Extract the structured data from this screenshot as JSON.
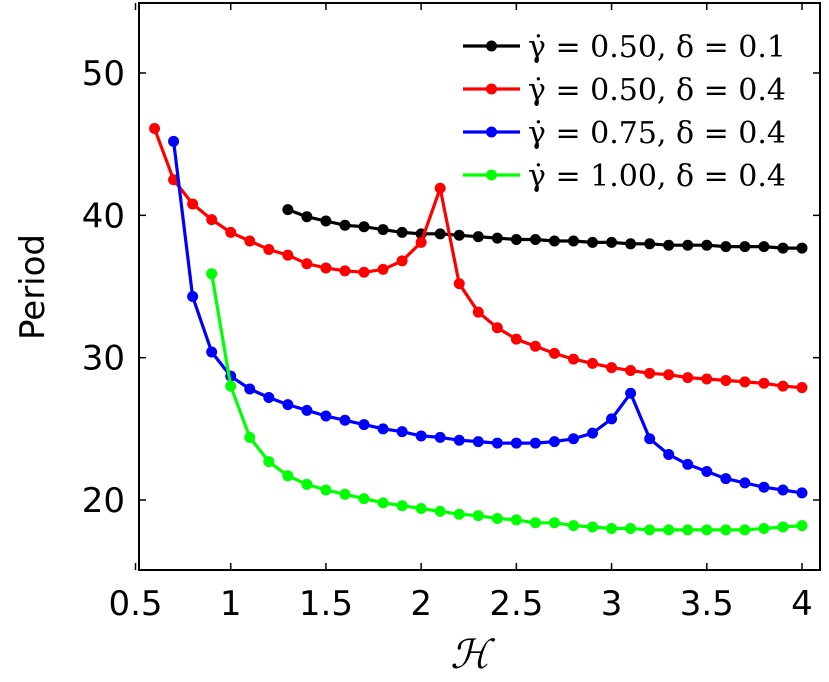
{
  "chart_data": {
    "type": "line",
    "title": "",
    "xlabel": "ℋ",
    "ylabel": "Period",
    "xlim": [
      0.5,
      4.05
    ],
    "ylim": [
      15,
      55
    ],
    "xticks": [
      0.5,
      1,
      1.5,
      2,
      2.5,
      3,
      3.5,
      4
    ],
    "xtick_labels": [
      "0.5",
      "1",
      "1.5",
      "2",
      "2.5",
      "3",
      "3.5",
      "4"
    ],
    "yticks": [
      20,
      30,
      40,
      50
    ],
    "ytick_labels": [
      "20",
      "30",
      "40",
      "50"
    ],
    "grid": false,
    "legend_position": "top-right",
    "series": [
      {
        "name": "γ̇ = 0.50,  δ = 0.1",
        "color": "#000000",
        "x": [
          1.3,
          1.4,
          1.5,
          1.6,
          1.7,
          1.8,
          1.9,
          2.0,
          2.1,
          2.2,
          2.3,
          2.4,
          2.5,
          2.6,
          2.7,
          2.8,
          2.9,
          3.0,
          3.1,
          3.2,
          3.3,
          3.4,
          3.5,
          3.6,
          3.7,
          3.8,
          3.9,
          4.0
        ],
        "y": [
          40.4,
          39.9,
          39.6,
          39.3,
          39.2,
          39.0,
          38.8,
          38.7,
          38.7,
          38.6,
          38.5,
          38.4,
          38.3,
          38.3,
          38.2,
          38.2,
          38.1,
          38.1,
          38.0,
          38.0,
          37.9,
          37.9,
          37.9,
          37.8,
          37.8,
          37.8,
          37.7,
          37.7
        ]
      },
      {
        "name": "γ̇ = 0.50,  δ = 0.4",
        "color": "#ff0000",
        "x": [
          0.6,
          0.7,
          0.8,
          0.9,
          1.0,
          1.1,
          1.2,
          1.3,
          1.4,
          1.5,
          1.6,
          1.7,
          1.8,
          1.9,
          2.0,
          2.1,
          2.2,
          2.3,
          2.4,
          2.5,
          2.6,
          2.7,
          2.8,
          2.9,
          3.0,
          3.1,
          3.2,
          3.3,
          3.4,
          3.5,
          3.6,
          3.7,
          3.8,
          3.9,
          4.0
        ],
        "y": [
          46.1,
          42.5,
          40.8,
          39.7,
          38.8,
          38.2,
          37.6,
          37.2,
          36.6,
          36.3,
          36.1,
          36.0,
          36.2,
          36.8,
          38.1,
          41.9,
          35.2,
          33.2,
          32.1,
          31.3,
          30.8,
          30.3,
          29.9,
          29.6,
          29.3,
          29.1,
          28.9,
          28.8,
          28.6,
          28.5,
          28.4,
          28.3,
          28.2,
          28.0,
          27.9
        ]
      },
      {
        "name": "γ̇ = 0.75,  δ = 0.4",
        "color": "#0000ff",
        "x": [
          0.7,
          0.8,
          0.9,
          1.0,
          1.1,
          1.2,
          1.3,
          1.4,
          1.5,
          1.6,
          1.7,
          1.8,
          1.9,
          2.0,
          2.1,
          2.2,
          2.3,
          2.4,
          2.5,
          2.6,
          2.7,
          2.8,
          2.9,
          3.0,
          3.1,
          3.2,
          3.3,
          3.4,
          3.5,
          3.6,
          3.7,
          3.8,
          3.9,
          4.0
        ],
        "y": [
          45.2,
          34.3,
          30.4,
          28.7,
          27.8,
          27.2,
          26.7,
          26.3,
          25.9,
          25.6,
          25.3,
          25.0,
          24.8,
          24.5,
          24.4,
          24.2,
          24.1,
          24.0,
          24.0,
          24.0,
          24.1,
          24.3,
          24.7,
          25.7,
          27.5,
          24.3,
          23.2,
          22.5,
          22.0,
          21.5,
          21.2,
          20.9,
          20.7,
          20.5
        ]
      },
      {
        "name": "γ̇ = 1.00,  δ = 0.4",
        "color": "#00ff00",
        "x": [
          0.9,
          1.0,
          1.1,
          1.2,
          1.3,
          1.4,
          1.5,
          1.6,
          1.7,
          1.8,
          1.9,
          2.0,
          2.1,
          2.2,
          2.3,
          2.4,
          2.5,
          2.6,
          2.7,
          2.8,
          2.9,
          3.0,
          3.1,
          3.2,
          3.3,
          3.4,
          3.5,
          3.6,
          3.7,
          3.8,
          3.9,
          4.0
        ],
        "y": [
          35.9,
          28.0,
          24.4,
          22.7,
          21.7,
          21.1,
          20.7,
          20.4,
          20.1,
          19.8,
          19.6,
          19.4,
          19.2,
          19.0,
          18.9,
          18.7,
          18.6,
          18.4,
          18.4,
          18.2,
          18.1,
          18.0,
          18.0,
          17.9,
          17.9,
          17.9,
          17.9,
          17.9,
          17.9,
          18.0,
          18.1,
          18.2
        ]
      }
    ]
  }
}
